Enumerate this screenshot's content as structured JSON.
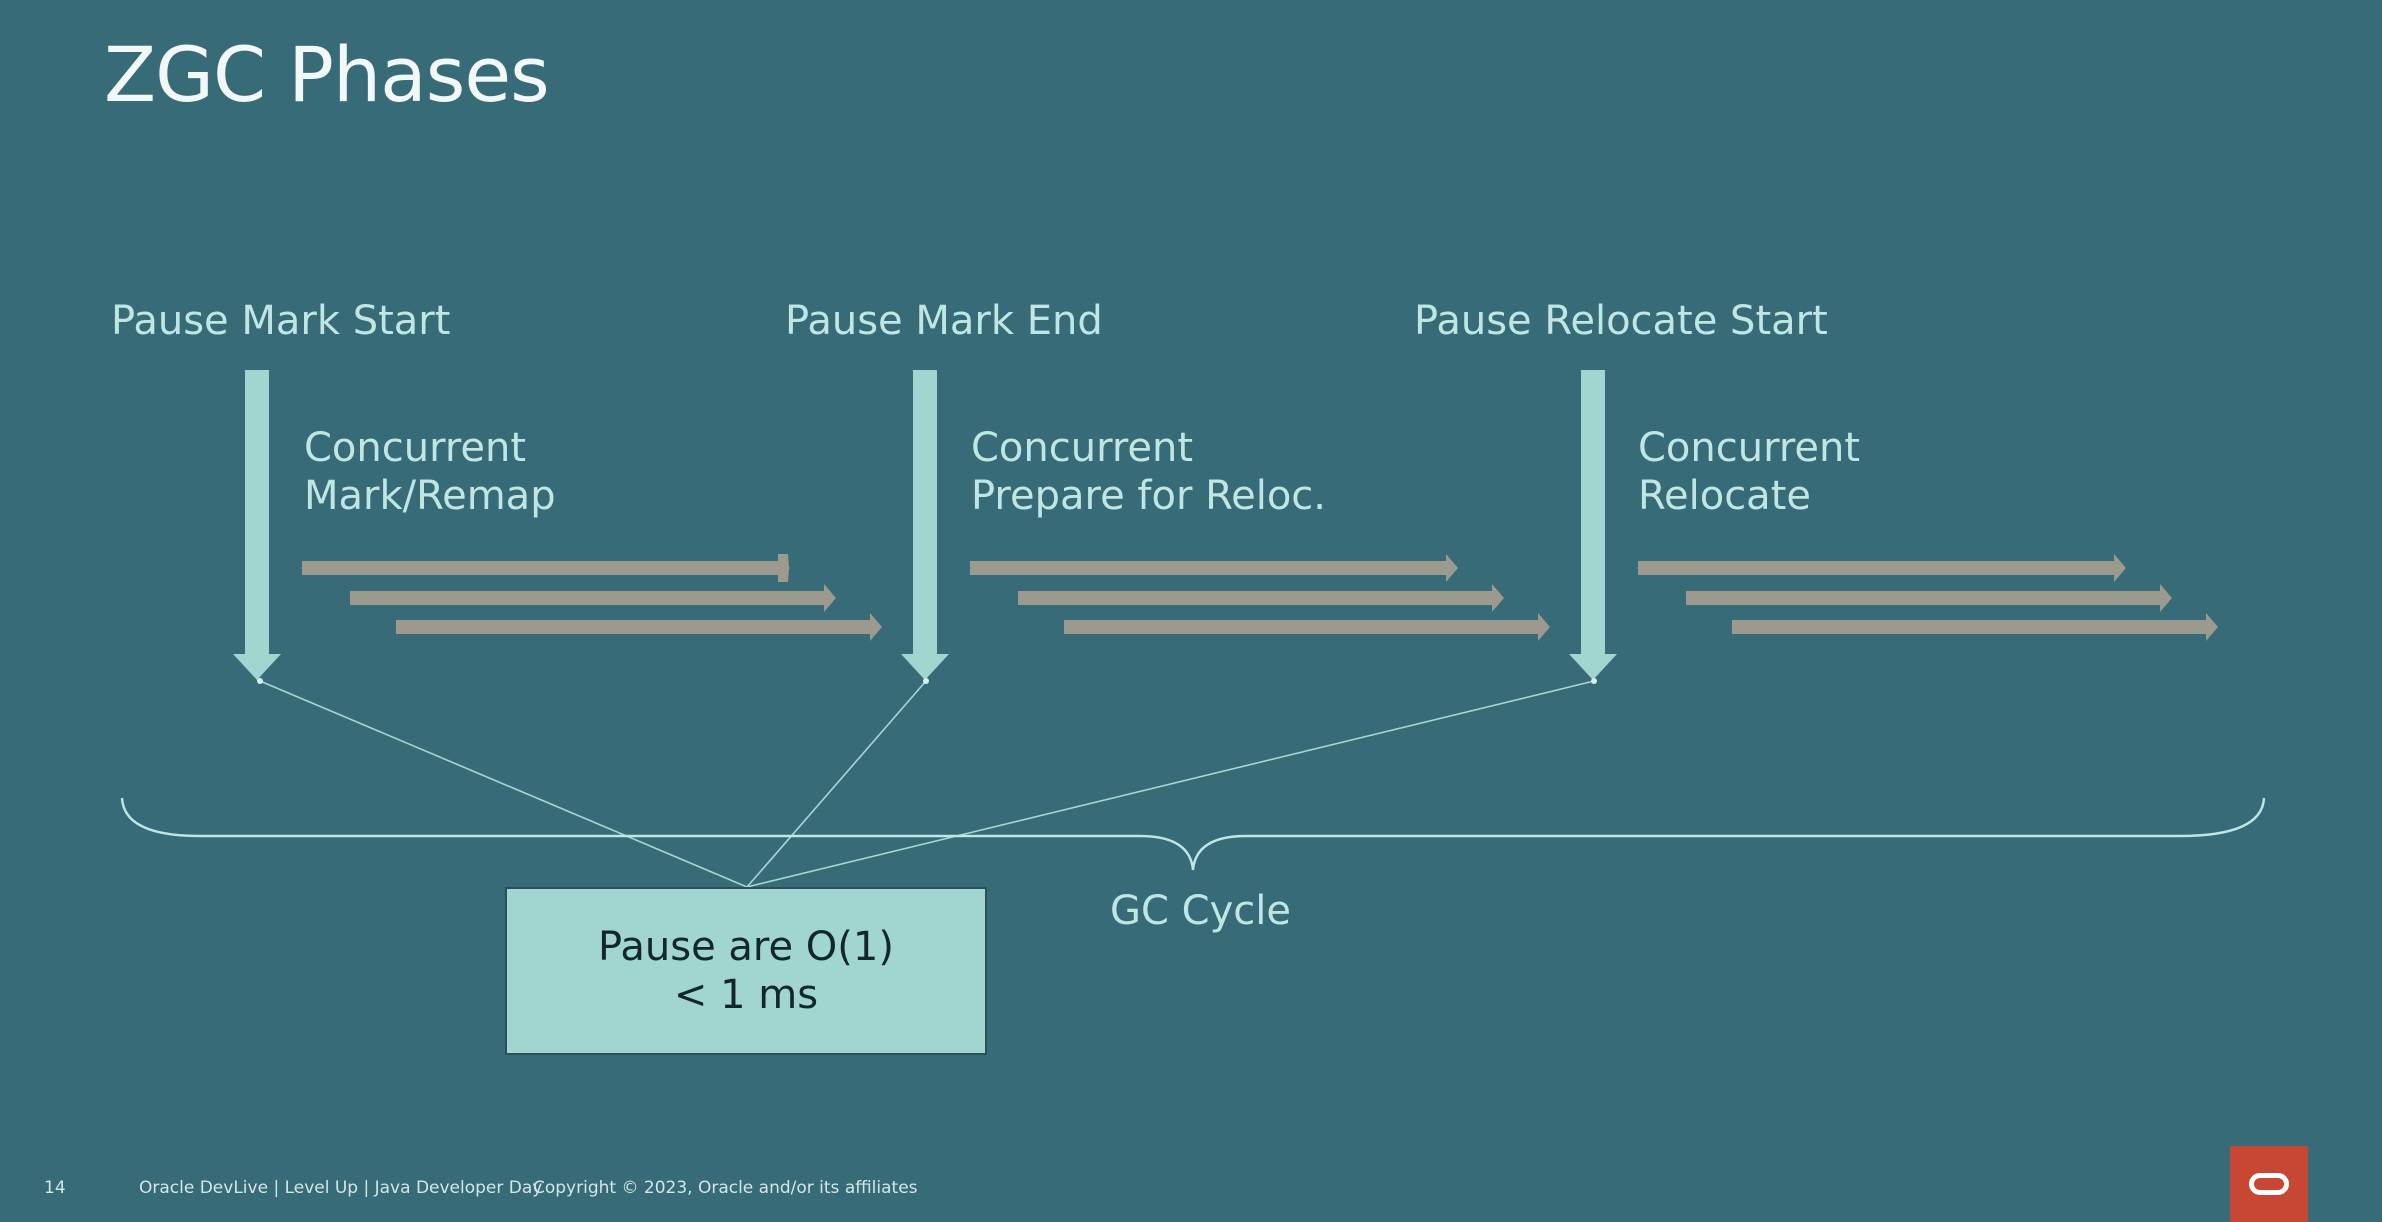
{
  "slide": {
    "title": "ZGC Phases",
    "page_number": "14",
    "footer_event": "Oracle DevLive | Level Up | Java Developer Day",
    "copyright": "Copyright © 2023, Oracle and/or its affiliates"
  },
  "phases": [
    {
      "pause": "Pause Mark Start",
      "concurrent_line1": "Concurrent",
      "concurrent_line2": "Mark/Remap"
    },
    {
      "pause": "Pause Mark End",
      "concurrent_line1": "Concurrent",
      "concurrent_line2": "Prepare for Reloc."
    },
    {
      "pause": "Pause Relocate Start",
      "concurrent_line1": "Concurrent",
      "concurrent_line2": "Relocate"
    }
  ],
  "note": {
    "line1": "Pause are O(1)",
    "line2": "< 1 ms"
  },
  "cycle_label": "GC Cycle",
  "colors": {
    "background": "#376b78",
    "pause_arrow": "#a0d6cf",
    "thread_arrow": "#9c9a8e",
    "note_fill": "#a0d6cf",
    "logo": "#c74634"
  },
  "icons": {
    "logo": "oracle-logo-icon"
  }
}
